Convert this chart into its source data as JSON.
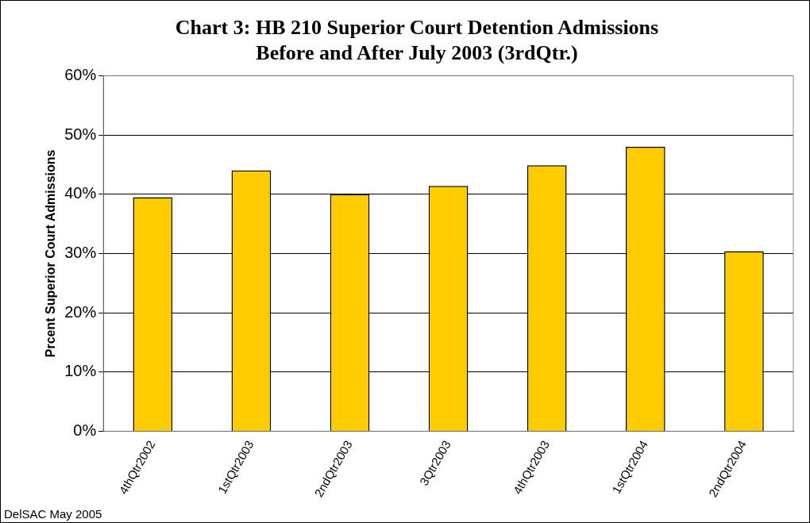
{
  "chart_data": {
    "type": "bar",
    "title": [
      "Chart 3: HB 210 Superior Court Detention Admissions",
      "Before and After July 2003 (3rdQtr.)"
    ],
    "ylabel": "Prcent Superior Court Admissions",
    "categories": [
      "4thQtr2002",
      "1stQtr2003",
      "2ndQtr2003",
      "3Qtr2003",
      "4thQtr2003",
      "1stQtr2004",
      "2ndQtr2004"
    ],
    "values": [
      39.5,
      44.0,
      40.0,
      41.4,
      44.9,
      48.0,
      30.4
    ],
    "color": "#ffcc00",
    "ylim": [
      0,
      60
    ],
    "yticks": [
      {
        "value": 0,
        "label": "0%"
      },
      {
        "value": 10,
        "label": "10%"
      },
      {
        "value": 20,
        "label": "20%"
      },
      {
        "value": 30,
        "label": "30%"
      },
      {
        "value": 40,
        "label": "40%"
      },
      {
        "value": 50,
        "label": "50%"
      },
      {
        "value": 60,
        "label": "60%"
      }
    ],
    "grid": "y",
    "legend": false,
    "annotations": [
      "DelSAC May 2005"
    ]
  }
}
